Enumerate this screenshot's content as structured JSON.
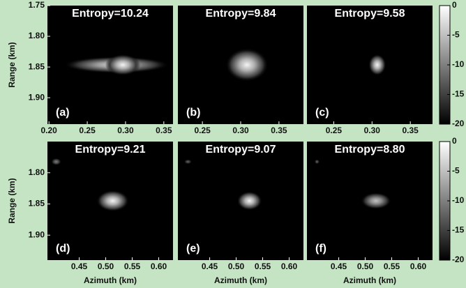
{
  "chart_data": [
    {
      "type": "heatmap",
      "title": "Entropy=10.24",
      "label": "(a)",
      "ylabel": "Range (km)",
      "xlim": [
        0.198,
        0.362
      ],
      "xticks": [
        {
          "value": 0.2,
          "label": "0.20"
        },
        0.25,
        {
          "value": 0.3,
          "label": "0.30"
        },
        0.35
      ],
      "ylim": [
        1.75,
        1.943
      ],
      "yticks": [
        1.75,
        {
          "value": 1.8,
          "label": "1.80"
        },
        1.85,
        {
          "value": 1.9,
          "label": "1.90"
        }
      ]
    },
    {
      "type": "heatmap",
      "title": "Entropy=9.84",
      "label": "(b)",
      "xlim": [
        0.218,
        0.382
      ],
      "xticks": [
        0.25,
        {
          "value": 0.3,
          "label": "0.30"
        },
        0.35
      ],
      "ylim": [
        1.75,
        1.943
      ]
    },
    {
      "type": "heatmap",
      "title": "Entropy=9.58",
      "label": "(c)",
      "xlim": [
        0.215,
        0.379
      ],
      "xticks": [
        0.25,
        {
          "value": 0.3,
          "label": "0.30"
        },
        0.35
      ],
      "ylim": [
        1.75,
        1.943
      ],
      "colorbar": {
        "lim": [
          -20,
          0
        ],
        "ticks": [
          0,
          -5,
          -10,
          -15,
          -20
        ]
      }
    },
    {
      "type": "heatmap",
      "title": "Entropy=9.21",
      "label": "(d)",
      "ylabel": "Range (km)",
      "xlabel": "Azimuth (km)",
      "xlim": [
        0.39,
        0.627
      ],
      "xticks": [
        0.45,
        {
          "value": 0.5,
          "label": "0.50"
        },
        0.55,
        {
          "value": 0.6,
          "label": "0.60"
        }
      ],
      "ylim": [
        1.75,
        1.94
      ],
      "yticks": [
        {
          "value": 1.8,
          "label": "1.80"
        },
        1.85,
        {
          "value": 1.9,
          "label": "1.90"
        }
      ]
    },
    {
      "type": "heatmap",
      "title": "Entropy=9.07",
      "label": "(e)",
      "xlabel": "Azimuth (km)",
      "xlim": [
        0.39,
        0.627
      ],
      "xticks": [
        0.45,
        {
          "value": 0.5,
          "label": "0.50"
        },
        0.55,
        {
          "value": 0.6,
          "label": "0.60"
        }
      ],
      "ylim": [
        1.75,
        1.94
      ]
    },
    {
      "type": "heatmap",
      "title": "Entropy=8.80",
      "label": "(f)",
      "xlabel": "Azimuth (km)",
      "xlim": [
        0.39,
        0.627
      ],
      "xticks": [
        0.45,
        {
          "value": 0.5,
          "label": "0.50"
        },
        0.55,
        {
          "value": 0.6,
          "label": "0.60"
        }
      ],
      "ylim": [
        1.75,
        1.94
      ],
      "colorbar": {
        "lim": [
          -20,
          0
        ],
        "ticks": [
          0,
          -5,
          -10,
          -15,
          -20
        ]
      }
    }
  ]
}
